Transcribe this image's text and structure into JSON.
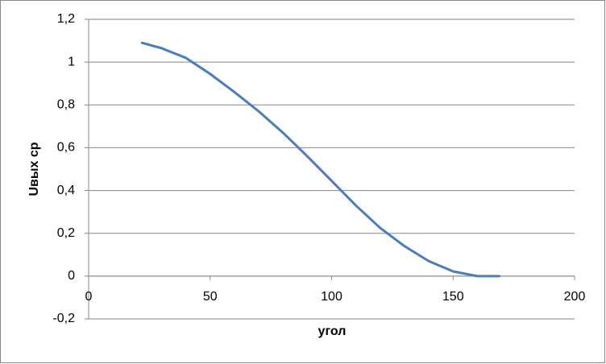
{
  "chart_data": {
    "type": "line",
    "x_label": "угол",
    "y_label": "Uвых ср",
    "x": [
      22,
      30,
      40,
      50,
      60,
      70,
      80,
      90,
      100,
      110,
      120,
      130,
      140,
      150,
      160,
      169
    ],
    "series": [
      {
        "name": "Uвых ср",
        "color": "#4a7ebb",
        "values": [
          1.09,
          1.065,
          1.02,
          0.945,
          0.86,
          0.77,
          0.67,
          0.56,
          0.445,
          0.33,
          0.225,
          0.14,
          0.07,
          0.022,
          0.0,
          0.0
        ]
      }
    ],
    "xlim": [
      0,
      200
    ],
    "xticks": [
      0,
      50,
      100,
      150,
      200
    ],
    "ylim": [
      -0.2,
      1.2
    ],
    "yticks": [
      {
        "value": -0.2,
        "label": "-0,2"
      },
      0,
      {
        "value": 0.2,
        "label": "0,2"
      },
      {
        "value": 0.4,
        "label": "0,4"
      },
      {
        "value": 0.6,
        "label": "0,6"
      },
      {
        "value": 0.8,
        "label": "0,8"
      },
      1,
      {
        "value": 1.2,
        "label": "1,2"
      }
    ],
    "grid": true
  }
}
